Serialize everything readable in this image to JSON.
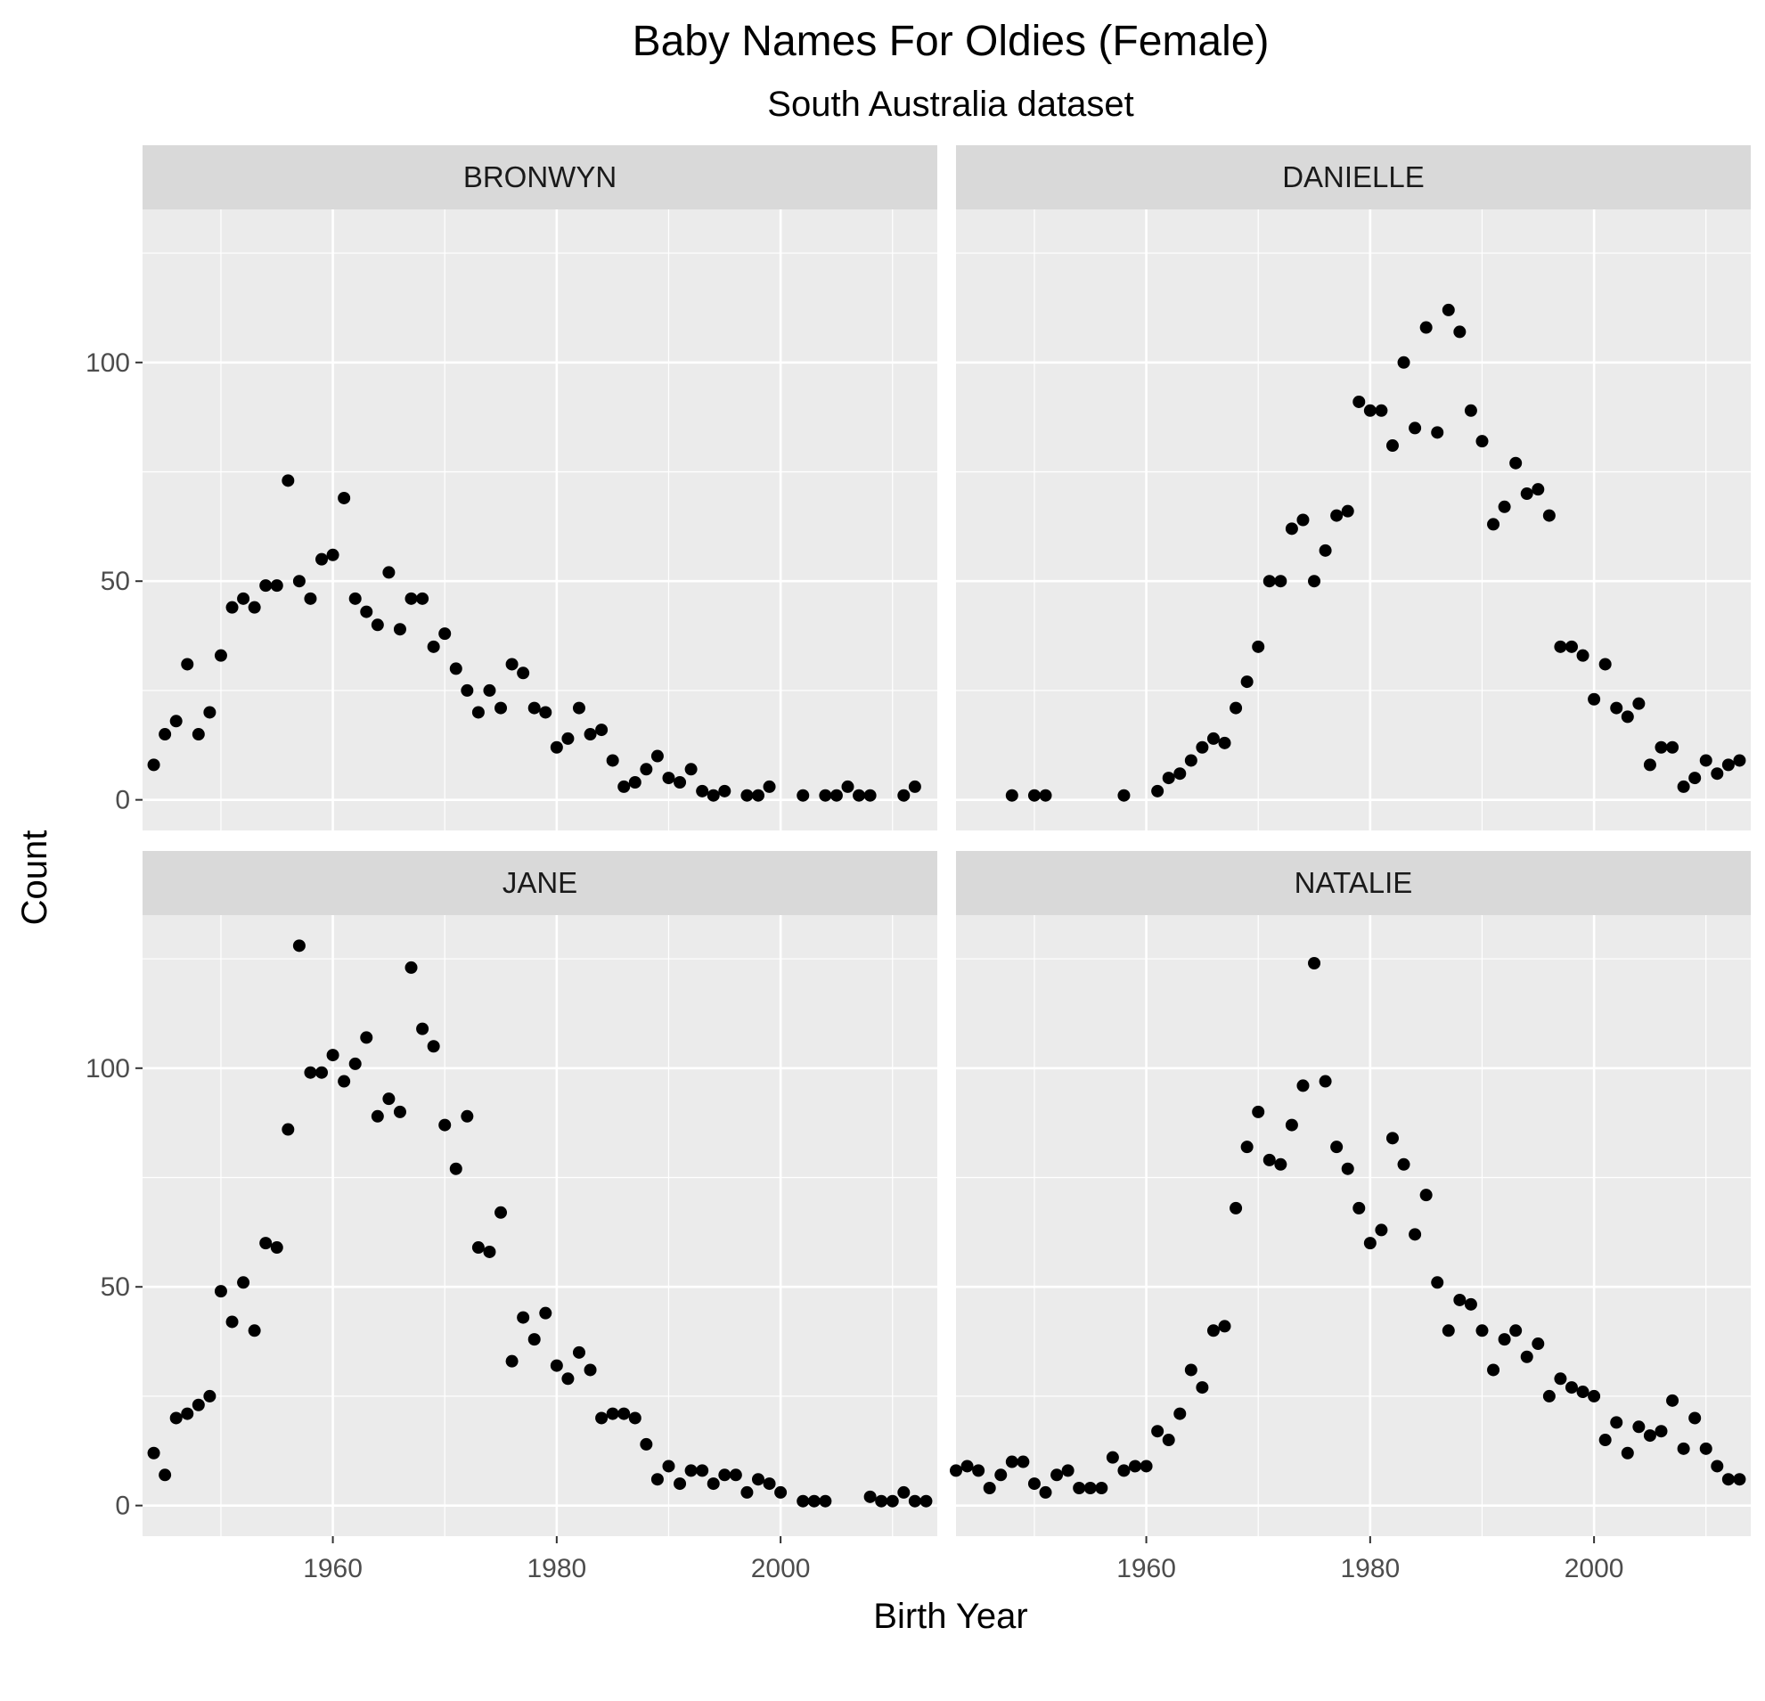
{
  "chart_data": {
    "type": "scatter",
    "title": "Baby Names For Oldies (Female)",
    "subtitle": "South Australia dataset",
    "xlabel": "Birth Year",
    "ylabel": "Count",
    "xlim": [
      1943,
      2014
    ],
    "ylim": [
      -7,
      135
    ],
    "x_ticks": [
      1960,
      1980,
      2000
    ],
    "y_ticks": [
      0,
      50,
      100
    ],
    "grid": true,
    "facets": [
      {
        "label": "BRONWYN",
        "x": [
          1944,
          1945,
          1946,
          1947,
          1948,
          1949,
          1950,
          1951,
          1952,
          1953,
          1954,
          1955,
          1956,
          1957,
          1958,
          1959,
          1960,
          1961,
          1962,
          1963,
          1964,
          1965,
          1966,
          1967,
          1968,
          1969,
          1970,
          1971,
          1972,
          1973,
          1974,
          1975,
          1976,
          1977,
          1978,
          1979,
          1980,
          1981,
          1982,
          1983,
          1984,
          1985,
          1986,
          1987,
          1988,
          1989,
          1990,
          1991,
          1992,
          1993,
          1994,
          1995,
          1997,
          1998,
          1999,
          2002,
          2004,
          2005,
          2006,
          2007,
          2008,
          2011,
          2012
        ],
        "y": [
          8,
          15,
          18,
          31,
          15,
          20,
          33,
          44,
          46,
          44,
          49,
          49,
          73,
          50,
          46,
          55,
          56,
          69,
          46,
          43,
          40,
          52,
          39,
          46,
          46,
          35,
          38,
          30,
          25,
          20,
          25,
          21,
          31,
          29,
          21,
          20,
          12,
          14,
          21,
          15,
          16,
          9,
          3,
          4,
          7,
          10,
          5,
          4,
          7,
          2,
          1,
          2,
          1,
          1,
          3,
          1,
          1,
          1,
          3,
          1,
          1,
          1,
          3
        ]
      },
      {
        "label": "DANIELLE",
        "x": [
          1948,
          1950,
          1951,
          1958,
          1961,
          1962,
          1963,
          1964,
          1965,
          1966,
          1967,
          1968,
          1969,
          1970,
          1971,
          1972,
          1973,
          1974,
          1975,
          1976,
          1977,
          1978,
          1979,
          1980,
          1981,
          1982,
          1983,
          1984,
          1985,
          1986,
          1987,
          1988,
          1989,
          1990,
          1991,
          1992,
          1993,
          1994,
          1995,
          1996,
          1997,
          1998,
          1999,
          2000,
          2001,
          2002,
          2003,
          2004,
          2005,
          2006,
          2007,
          2008,
          2009,
          2010,
          2011,
          2012,
          2013
        ],
        "y": [
          1,
          1,
          1,
          1,
          2,
          5,
          6,
          9,
          12,
          14,
          13,
          21,
          27,
          35,
          50,
          50,
          62,
          64,
          50,
          57,
          65,
          66,
          91,
          89,
          89,
          81,
          100,
          85,
          108,
          84,
          112,
          107,
          89,
          82,
          63,
          67,
          77,
          70,
          71,
          65,
          35,
          35,
          33,
          23,
          31,
          21,
          19,
          22,
          8,
          12,
          12,
          3,
          5,
          9,
          6,
          8,
          9
        ]
      },
      {
        "label": "JANE",
        "x": [
          1944,
          1945,
          1946,
          1947,
          1948,
          1949,
          1950,
          1951,
          1952,
          1953,
          1954,
          1955,
          1956,
          1957,
          1958,
          1959,
          1960,
          1961,
          1962,
          1963,
          1964,
          1965,
          1966,
          1967,
          1968,
          1969,
          1970,
          1971,
          1972,
          1973,
          1974,
          1975,
          1976,
          1977,
          1978,
          1979,
          1980,
          1981,
          1982,
          1983,
          1984,
          1985,
          1986,
          1987,
          1988,
          1989,
          1990,
          1991,
          1992,
          1993,
          1994,
          1995,
          1996,
          1997,
          1998,
          1999,
          2000,
          2002,
          2003,
          2004,
          2008,
          2009,
          2010,
          2011,
          2012,
          2013
        ],
        "y": [
          12,
          7,
          20,
          21,
          23,
          25,
          49,
          42,
          51,
          40,
          60,
          59,
          86,
          128,
          99,
          99,
          103,
          97,
          101,
          107,
          89,
          93,
          90,
          123,
          109,
          105,
          87,
          77,
          89,
          59,
          58,
          67,
          33,
          43,
          38,
          44,
          32,
          29,
          35,
          31,
          20,
          21,
          21,
          20,
          14,
          6,
          9,
          5,
          8,
          8,
          5,
          7,
          7,
          3,
          6,
          5,
          3,
          1,
          1,
          1,
          2,
          1,
          1,
          3,
          1,
          1
        ]
      },
      {
        "label": "NATALIE",
        "x": [
          1943,
          1944,
          1945,
          1946,
          1947,
          1948,
          1949,
          1950,
          1951,
          1952,
          1953,
          1954,
          1955,
          1956,
          1957,
          1958,
          1959,
          1960,
          1961,
          1962,
          1963,
          1964,
          1965,
          1966,
          1967,
          1968,
          1969,
          1970,
          1971,
          1972,
          1973,
          1974,
          1975,
          1976,
          1977,
          1978,
          1979,
          1980,
          1981,
          1982,
          1983,
          1984,
          1985,
          1986,
          1987,
          1988,
          1989,
          1990,
          1991,
          1992,
          1993,
          1994,
          1995,
          1996,
          1997,
          1998,
          1999,
          2000,
          2001,
          2002,
          2003,
          2004,
          2005,
          2006,
          2007,
          2008,
          2009,
          2010,
          2011,
          2012,
          2013
        ],
        "y": [
          8,
          9,
          8,
          4,
          7,
          10,
          10,
          5,
          3,
          7,
          8,
          4,
          4,
          4,
          11,
          8,
          9,
          9,
          17,
          15,
          21,
          31,
          27,
          40,
          41,
          68,
          82,
          90,
          79,
          78,
          87,
          96,
          124,
          97,
          82,
          77,
          68,
          60,
          63,
          84,
          78,
          62,
          71,
          51,
          40,
          47,
          46,
          40,
          31,
          38,
          40,
          34,
          37,
          25,
          29,
          27,
          26,
          25,
          15,
          19,
          12,
          18,
          16,
          17,
          24,
          13,
          20,
          13,
          9,
          6,
          6
        ]
      }
    ]
  }
}
